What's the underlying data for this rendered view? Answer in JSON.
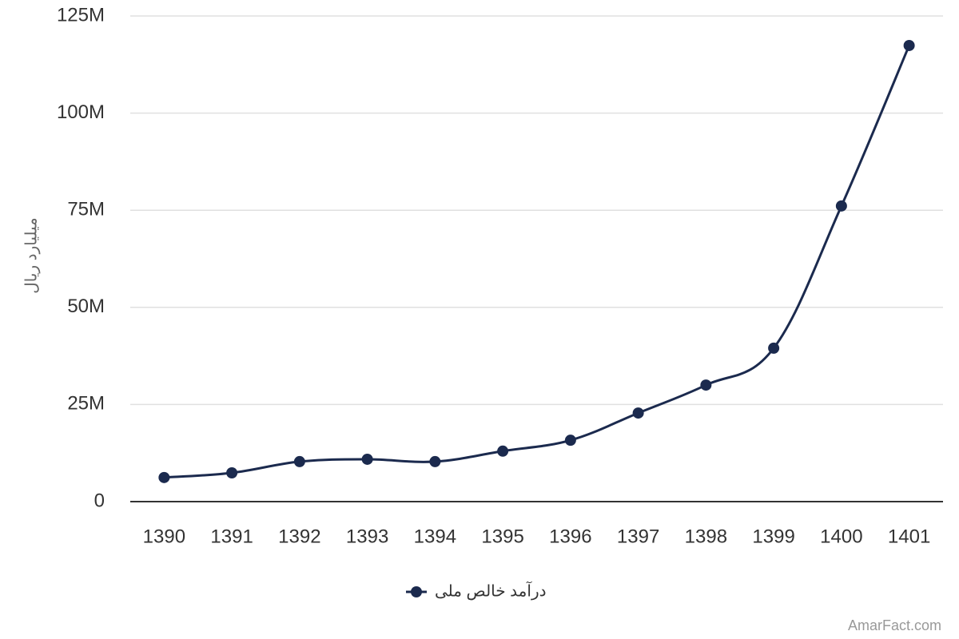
{
  "chart_data": {
    "type": "line",
    "y_axis_label": "میلیارد ریال",
    "watermark": "AmarFact.com",
    "categories": [
      "1390",
      "1391",
      "1392",
      "1393",
      "1394",
      "1395",
      "1396",
      "1397",
      "1398",
      "1399",
      "1400",
      "1401"
    ],
    "series": [
      {
        "name": "درآمد خالص ملی",
        "color": "#1b2a4e",
        "values": [
          6200000,
          7400000,
          10300000,
          10900000,
          10300000,
          13000000,
          15800000,
          22800000,
          30000000,
          39500000,
          76100000,
          117400000
        ]
      }
    ],
    "ylim": [
      0,
      125000000
    ],
    "yticks": [
      {
        "value": 0,
        "label": "0"
      },
      {
        "value": 25000000,
        "label": "25M"
      },
      {
        "value": 50000000,
        "label": "50M"
      },
      {
        "value": 75000000,
        "label": "75M"
      },
      {
        "value": 100000000,
        "label": "100M"
      },
      {
        "value": 125000000,
        "label": "125M"
      }
    ],
    "grid": true,
    "legend": "bottom"
  }
}
